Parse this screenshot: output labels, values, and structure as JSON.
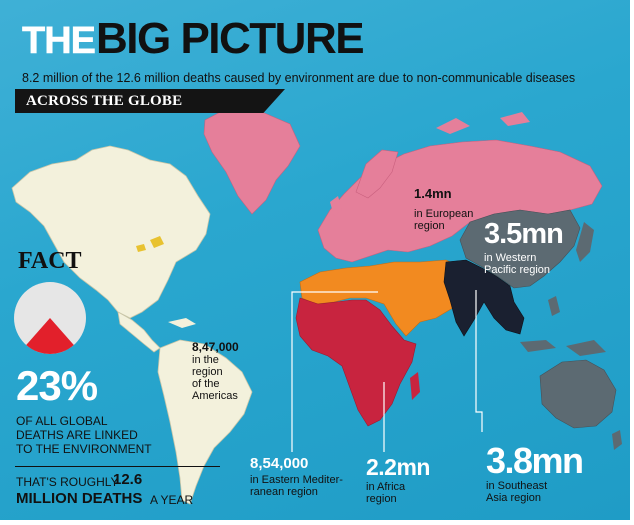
{
  "header": {
    "title_part1": "THE",
    "title_part2": "BIG PICTURE",
    "subtitle": "8.2 million of the 12.6 million deaths caused by environment are due to non-communicable diseases",
    "section_label": "ACROSS THE GLOBE"
  },
  "fact": {
    "heading": "FACT",
    "share_fraction": 0.23,
    "percent_text": "23%",
    "description_lines": [
      "OF ALL GLOBAL",
      "DEATHS ARE LINKED",
      "TO THE ENVIRONMENT"
    ],
    "roughly_prefix": "THAT'S ROUGHLY",
    "roughly_number": "12.6",
    "roughly_unit": "MILLION DEATHS",
    "roughly_suffix": "A YEAR"
  },
  "regions": {
    "european": {
      "value": "1.4mn",
      "label_lines": [
        "in European",
        "region"
      ],
      "color": "#e57f9a"
    },
    "western_pacific": {
      "value": "3.5mn",
      "label_lines": [
        "in Western",
        "Pacific region"
      ],
      "color": "#5c6a72"
    },
    "americas": {
      "value": "8,47,000",
      "label_lines": [
        "in the",
        "region",
        "of the",
        "Americas"
      ],
      "color": "#f3f1dc"
    },
    "eastern_mediterranean": {
      "value": "8,54,000",
      "label_lines": [
        "in Eastern Mediter-",
        "ranean region"
      ],
      "color": "#f28a20"
    },
    "africa": {
      "value": "2.2mn",
      "label_lines": [
        "in Africa",
        "region"
      ],
      "color": "#c8243f"
    },
    "southeast_asia": {
      "value": "3.8mn",
      "label_lines": [
        "in Southeast",
        "Asia region"
      ],
      "color": "#1a2030"
    }
  },
  "colors": {
    "ocean": "#2aa7cf",
    "pie_remainder": "#e6e6e6",
    "pie_share": "#e2202b",
    "lake_yellow": "#e8c230"
  }
}
